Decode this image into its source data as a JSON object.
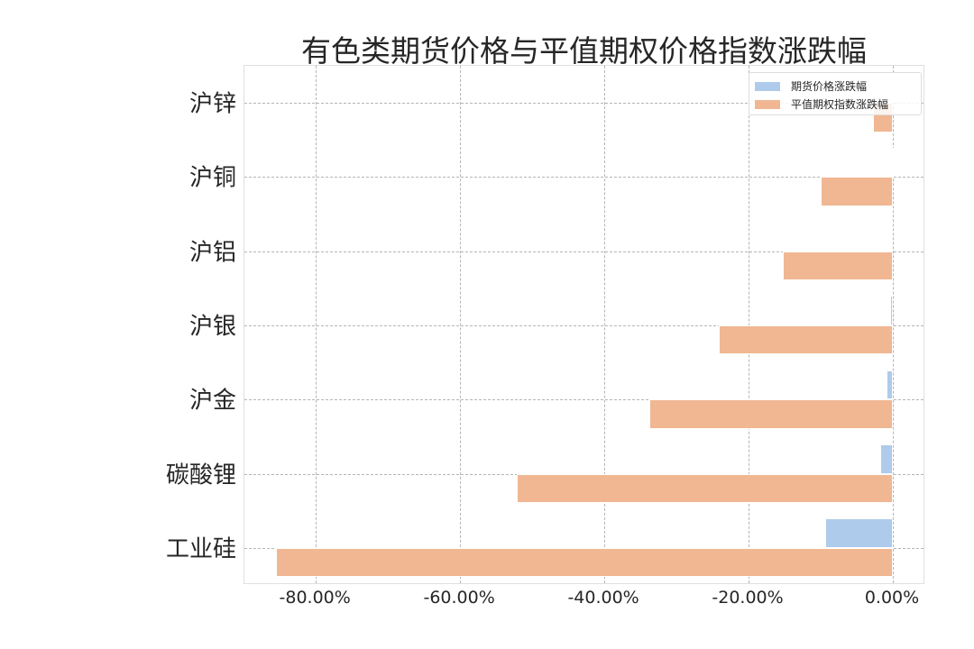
{
  "chart_data": {
    "type": "bar",
    "orientation": "horizontal",
    "title": "有色类期货价格与平值期权价格指数涨跌幅",
    "xlabel": "",
    "ylabel": "",
    "categories": [
      "沪锌",
      "沪铜",
      "沪铝",
      "沪银",
      "沪金",
      "碳酸锂",
      "工业硅"
    ],
    "series": [
      {
        "name": "期货价格涨跌幅",
        "color": "#aecbeb",
        "values": [
          0.0,
          0.2,
          -0.3,
          -0.4,
          -0.9,
          -1.8,
          -9.4
        ]
      },
      {
        "name": "平值期权指数涨跌幅",
        "color": "#f0b792",
        "values": [
          -2.8,
          -10.0,
          -15.2,
          -24.1,
          -33.8,
          -52.1,
          -85.5
        ]
      }
    ],
    "xticks": [
      "-80.00%",
      "-60.00%",
      "-40.00%",
      "-20.00%",
      "0.00%"
    ],
    "xtick_values": [
      -80,
      -60,
      -40,
      -20,
      0
    ],
    "xlim": [
      -89.9,
      4.5
    ],
    "grid": true,
    "legend_position": "upper right"
  }
}
